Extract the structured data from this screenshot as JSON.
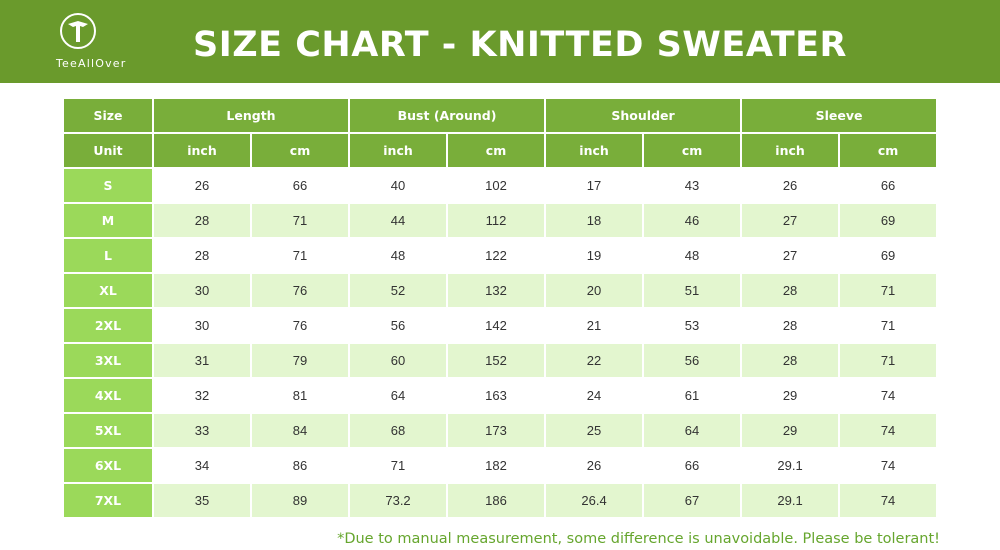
{
  "header": {
    "brand": "TeeAllOver",
    "title": "SIZE CHART - KNITTED SWEATER"
  },
  "colors": {
    "header_bg": "#6a9a2c",
    "table_header_bg": "#79ae3a",
    "size_cell_bg": "#9bd95a",
    "alt_row_bg": "#e3f6cf",
    "note_text": "#66a62e"
  },
  "table": {
    "header1": [
      "Size",
      "Length",
      "Bust (Around)",
      "Shoulder",
      "Sleeve"
    ],
    "unit_label": "Unit",
    "units": [
      "inch",
      "cm",
      "inch",
      "cm",
      "inch",
      "cm",
      "inch",
      "cm"
    ],
    "rows": [
      {
        "size": "S",
        "values": [
          "26",
          "66",
          "40",
          "102",
          "17",
          "43",
          "26",
          "66"
        ]
      },
      {
        "size": "M",
        "values": [
          "28",
          "71",
          "44",
          "112",
          "18",
          "46",
          "27",
          "69"
        ]
      },
      {
        "size": "L",
        "values": [
          "28",
          "71",
          "48",
          "122",
          "19",
          "48",
          "27",
          "69"
        ]
      },
      {
        "size": "XL",
        "values": [
          "30",
          "76",
          "52",
          "132",
          "20",
          "51",
          "28",
          "71"
        ]
      },
      {
        "size": "2XL",
        "values": [
          "30",
          "76",
          "56",
          "142",
          "21",
          "53",
          "28",
          "71"
        ]
      },
      {
        "size": "3XL",
        "values": [
          "31",
          "79",
          "60",
          "152",
          "22",
          "56",
          "28",
          "71"
        ]
      },
      {
        "size": "4XL",
        "values": [
          "32",
          "81",
          "64",
          "163",
          "24",
          "61",
          "29",
          "74"
        ]
      },
      {
        "size": "5XL",
        "values": [
          "33",
          "84",
          "68",
          "173",
          "25",
          "64",
          "29",
          "74"
        ]
      },
      {
        "size": "6XL",
        "values": [
          "34",
          "86",
          "71",
          "182",
          "26",
          "66",
          "29.1",
          "74"
        ]
      },
      {
        "size": "7XL",
        "values": [
          "35",
          "89",
          "73.2",
          "186",
          "26.4",
          "67",
          "29.1",
          "74"
        ]
      }
    ]
  },
  "note": "*Due to manual measurement, some difference is unavoidable. Please be tolerant!"
}
